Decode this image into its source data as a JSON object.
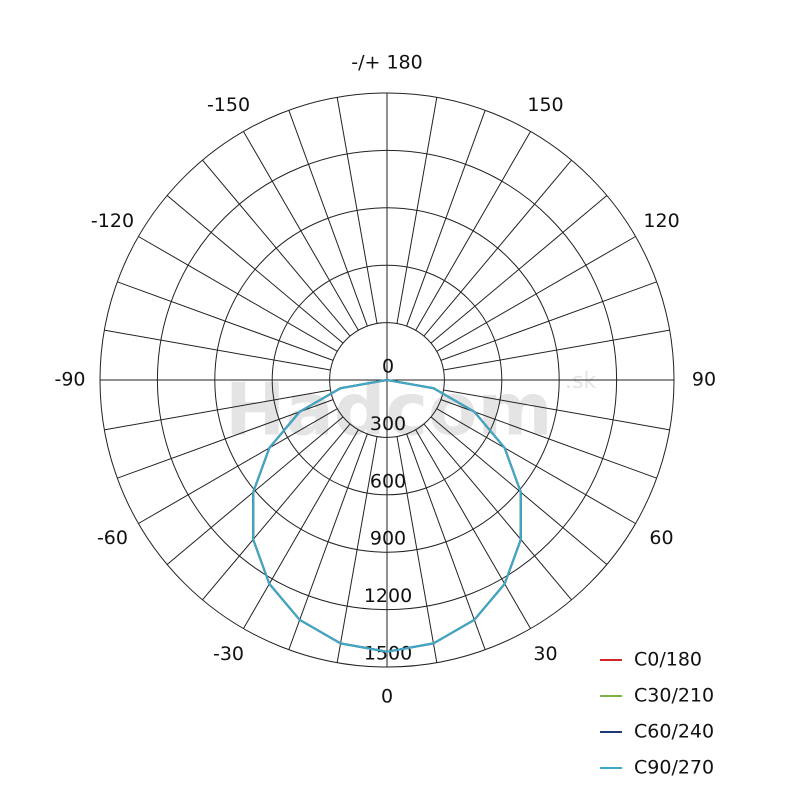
{
  "chart_data": {
    "type": "polar",
    "theta": [
      -90,
      -80,
      -70,
      -60,
      -50,
      -40,
      -30,
      -20,
      -10,
      0,
      10,
      20,
      30,
      40,
      50,
      60,
      70,
      80,
      90
    ],
    "series": [
      {
        "name": "C0/180",
        "color": "#d62728",
        "values": [
          0,
          247,
          486,
          710,
          913,
          1088,
          1230,
          1334,
          1398,
          1420,
          1398,
          1334,
          1230,
          1088,
          913,
          710,
          486,
          247,
          0
        ]
      },
      {
        "name": "C30/210",
        "color": "#7cb342",
        "values": [
          0,
          247,
          486,
          710,
          913,
          1088,
          1230,
          1334,
          1398,
          1420,
          1398,
          1334,
          1230,
          1088,
          913,
          710,
          486,
          247,
          0
        ]
      },
      {
        "name": "C60/240",
        "color": "#1f3b73",
        "values": [
          0,
          247,
          486,
          710,
          913,
          1088,
          1230,
          1334,
          1398,
          1420,
          1398,
          1334,
          1230,
          1088,
          913,
          710,
          486,
          247,
          0
        ]
      },
      {
        "name": "C90/270",
        "color": "#3fa9c9",
        "values": [
          0,
          247,
          486,
          710,
          913,
          1088,
          1230,
          1334,
          1398,
          1420,
          1398,
          1334,
          1230,
          1088,
          913,
          710,
          486,
          247,
          0
        ]
      }
    ],
    "rlim": [
      0,
      1500
    ],
    "rticks": [
      0,
      300,
      600,
      900,
      1200,
      1500
    ],
    "thetaticks": [
      0,
      30,
      60,
      90,
      120,
      150,
      {
        "value": 180,
        "label": "-/+ 180"
      },
      -150,
      -120,
      -90,
      -60,
      -30
    ],
    "thetaminorticks": [
      10,
      20,
      40,
      50,
      70,
      80,
      100,
      110,
      130,
      140,
      160,
      170,
      -10,
      -20,
      -40,
      -50,
      -70,
      -80,
      -100,
      -110,
      -130,
      -140,
      -160,
      -170
    ],
    "watermark": "Hadcom",
    "watermark_suffix": ".sk",
    "legend": "lower right"
  }
}
